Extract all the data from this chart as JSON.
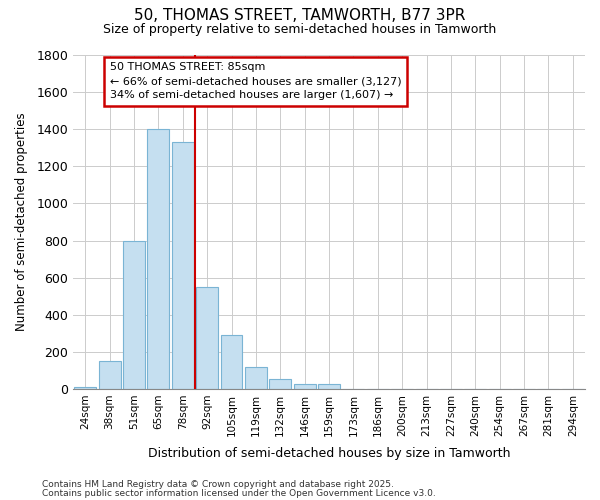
{
  "title_line1": "50, THOMAS STREET, TAMWORTH, B77 3PR",
  "title_line2": "Size of property relative to semi-detached houses in Tamworth",
  "xlabel": "Distribution of semi-detached houses by size in Tamworth",
  "ylabel": "Number of semi-detached properties",
  "categories": [
    "24sqm",
    "38sqm",
    "51sqm",
    "65sqm",
    "78sqm",
    "92sqm",
    "105sqm",
    "119sqm",
    "132sqm",
    "146sqm",
    "159sqm",
    "173sqm",
    "186sqm",
    "200sqm",
    "213sqm",
    "227sqm",
    "240sqm",
    "254sqm",
    "267sqm",
    "281sqm",
    "294sqm"
  ],
  "values": [
    10,
    150,
    800,
    1400,
    1330,
    550,
    290,
    120,
    55,
    25,
    25,
    0,
    0,
    0,
    0,
    0,
    0,
    0,
    0,
    0,
    0
  ],
  "bar_color": "#c5dff0",
  "bar_edge_color": "#7ab4d4",
  "annotation_title": "50 THOMAS STREET: 85sqm",
  "annotation_line1": "← 66% of semi-detached houses are smaller (3,127)",
  "annotation_line2": "34% of semi-detached houses are larger (1,607) →",
  "annotation_box_facecolor": "#ffffff",
  "annotation_box_edgecolor": "#cc0000",
  "vline_color": "#cc0000",
  "vline_x": 5.0,
  "ylim": [
    0,
    1800
  ],
  "yticks": [
    0,
    200,
    400,
    600,
    800,
    1000,
    1200,
    1400,
    1600,
    1800
  ],
  "grid_color": "#cccccc",
  "bg_color": "#ffffff",
  "footnote1": "Contains HM Land Registry data © Crown copyright and database right 2025.",
  "footnote2": "Contains public sector information licensed under the Open Government Licence v3.0."
}
